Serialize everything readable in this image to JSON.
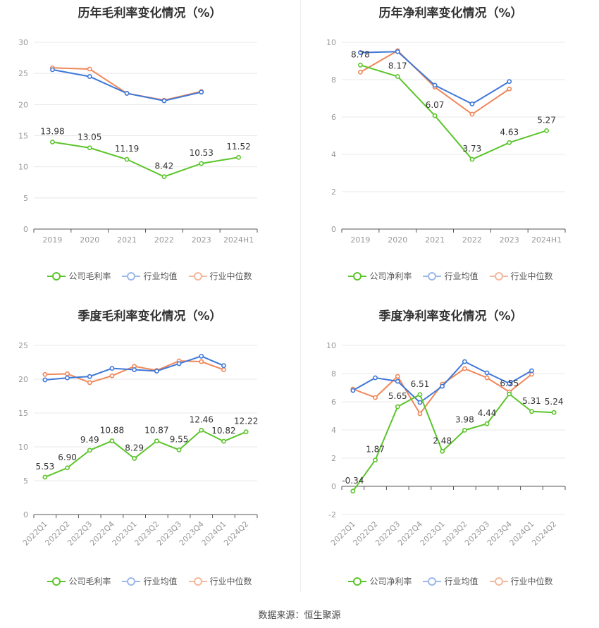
{
  "legend_labels": {
    "company_gross": "公司毛利率",
    "company_net": "公司净利率",
    "industry_avg": "行业均值",
    "industry_median": "行业中位数"
  },
  "colors": {
    "company": "#5bc52a",
    "industry_avg": "#3f78d9",
    "industry_median": "#f0875a",
    "grid": "#e8e8e8",
    "axis_text": "#999999",
    "label_text": "#333333"
  },
  "source": "数据来源：恒生聚源",
  "chart_data": [
    {
      "type": "line",
      "title": "历年毛利率变化情况（%）",
      "categories": [
        "2019",
        "2020",
        "2021",
        "2022",
        "2023",
        "2024H1"
      ],
      "ylim": [
        0,
        30
      ],
      "yticks": [
        "0",
        "5",
        "10",
        "15",
        "20",
        "25",
        "30"
      ],
      "rotate_x": false,
      "series": [
        {
          "name": "公司毛利率",
          "values": [
            13.98,
            13.05,
            11.19,
            8.42,
            10.53,
            11.52
          ],
          "labels": [
            "13.98",
            "13.05",
            "11.19",
            "8.42",
            "10.53",
            "11.52"
          ]
        },
        {
          "name": "行业均值",
          "values": [
            25.6,
            24.5,
            21.8,
            20.6,
            22.0,
            null
          ]
        },
        {
          "name": "行业中位数",
          "values": [
            25.9,
            25.7,
            21.8,
            20.7,
            22.1,
            null
          ]
        }
      ],
      "grid": true,
      "legend_position": "bottom"
    },
    {
      "type": "line",
      "title": "历年净利率变化情况（%）",
      "categories": [
        "2019",
        "2020",
        "2021",
        "2022",
        "2023",
        "2024H1"
      ],
      "ylim": [
        0,
        10
      ],
      "yticks": [
        "0",
        "2",
        "4",
        "6",
        "8",
        "10"
      ],
      "rotate_x": false,
      "series": [
        {
          "name": "公司净利率",
          "values": [
            8.78,
            8.17,
            6.07,
            3.73,
            4.63,
            5.27
          ],
          "labels": [
            "8.78",
            "8.17",
            "6.07",
            "3.73",
            "4.63",
            "5.27"
          ]
        },
        {
          "name": "行业均值",
          "values": [
            9.45,
            9.5,
            7.7,
            6.7,
            7.9,
            null
          ]
        },
        {
          "name": "行业中位数",
          "values": [
            8.4,
            9.55,
            7.6,
            6.15,
            7.5,
            null
          ]
        }
      ],
      "grid": true,
      "legend_position": "bottom"
    },
    {
      "type": "line",
      "title": "季度毛利率变化情况（%）",
      "categories": [
        "2022Q1",
        "2022Q2",
        "2022Q3",
        "2022Q4",
        "2023Q1",
        "2023Q2",
        "2023Q3",
        "2023Q4",
        "2024Q1",
        "2024Q2"
      ],
      "ylim": [
        0,
        25
      ],
      "yticks": [
        "0",
        "5",
        "10",
        "15",
        "20",
        "25"
      ],
      "rotate_x": true,
      "series": [
        {
          "name": "公司毛利率",
          "values": [
            5.53,
            6.9,
            9.49,
            10.88,
            8.29,
            10.87,
            9.55,
            12.46,
            10.82,
            12.22
          ],
          "labels": [
            "5.53",
            "6.90",
            "9.49",
            "10.88",
            "8.29",
            "10.87",
            "9.55",
            "12.46",
            "10.82",
            "12.22"
          ]
        },
        {
          "name": "行业均值",
          "values": [
            19.9,
            20.2,
            20.4,
            21.6,
            21.4,
            21.2,
            22.3,
            23.4,
            22.0,
            null
          ]
        },
        {
          "name": "行业中位数",
          "values": [
            20.7,
            20.8,
            19.5,
            20.5,
            21.9,
            21.3,
            22.7,
            22.6,
            21.4,
            null
          ]
        }
      ],
      "grid": true,
      "legend_position": "bottom"
    },
    {
      "type": "line",
      "title": "季度净利率变化情况（%）",
      "categories": [
        "2022Q1",
        "2022Q2",
        "2022Q3",
        "2022Q4",
        "2023Q1",
        "2023Q2",
        "2023Q3",
        "2023Q4",
        "2024Q1",
        "2024Q2"
      ],
      "ylim": [
        -2,
        10
      ],
      "yticks": [
        "-2",
        "0",
        "2",
        "4",
        "6",
        "8",
        "10"
      ],
      "rotate_x": true,
      "series": [
        {
          "name": "公司净利率",
          "values": [
            -0.34,
            1.87,
            5.65,
            6.51,
            2.48,
            3.98,
            4.44,
            6.55,
            5.31,
            5.24
          ],
          "labels": [
            "-0.34",
            "1.87",
            "5.65",
            "6.51",
            "2.48",
            "3.98",
            "4.44",
            "6.55",
            "5.31",
            "5.24"
          ]
        },
        {
          "name": "行业均值",
          "values": [
            6.8,
            7.7,
            7.45,
            5.95,
            7.1,
            8.85,
            8.05,
            7.3,
            8.2,
            null
          ]
        },
        {
          "name": "行业中位数",
          "values": [
            6.9,
            6.3,
            7.8,
            5.15,
            7.25,
            8.35,
            7.7,
            6.7,
            7.95,
            null
          ]
        }
      ],
      "grid": true,
      "legend_position": "bottom"
    }
  ]
}
